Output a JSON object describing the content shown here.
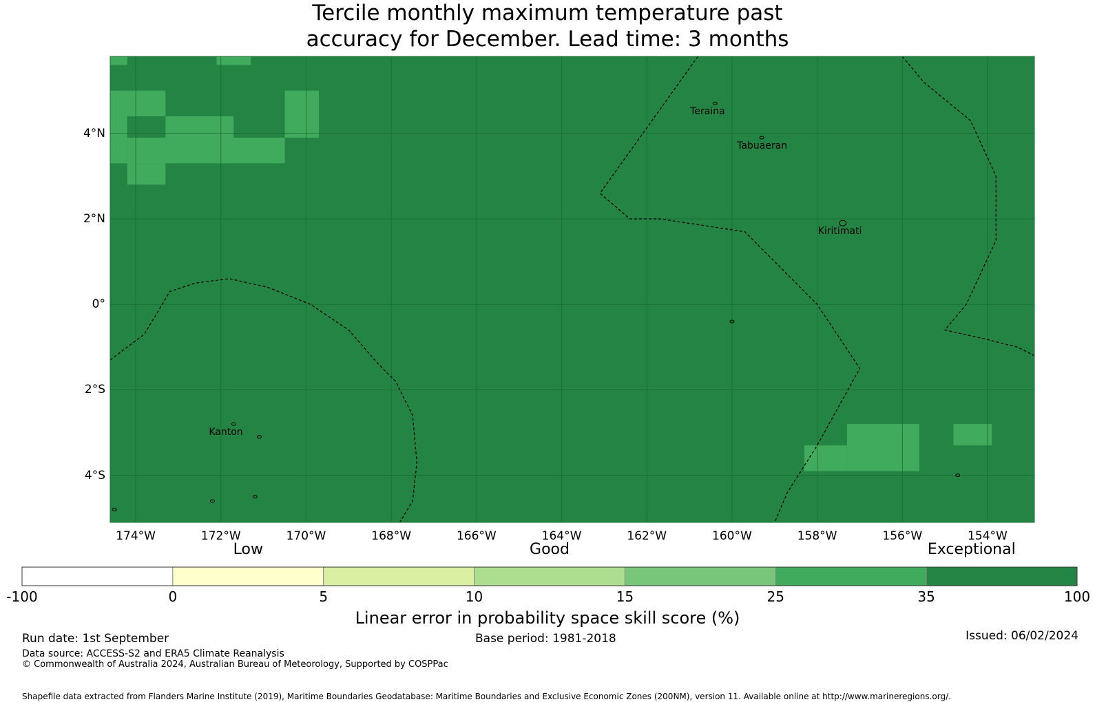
{
  "title": {
    "line1": "Tercile monthly maximum temperature past",
    "line2": "accuracy for December. Lead time: 3 months"
  },
  "map": {
    "lon_range": [
      -174.6,
      -152.9
    ],
    "lat_range": [
      -5.1,
      5.8
    ],
    "grid_step_deg": 2,
    "grid_visible": true,
    "background_color": "#238443",
    "cell_color": "#41ab5d",
    "lat_labels": [
      {
        "lat": 4,
        "text": "4°N"
      },
      {
        "lat": 2,
        "text": "2°N"
      },
      {
        "lat": 0,
        "text": "0°"
      },
      {
        "lat": -2,
        "text": "2°S"
      },
      {
        "lat": -4,
        "text": "4°S"
      }
    ],
    "lon_labels": [
      {
        "lon": -174,
        "text": "174°W"
      },
      {
        "lon": -172,
        "text": "172°W"
      },
      {
        "lon": -170,
        "text": "170°W"
      },
      {
        "lon": -168,
        "text": "168°W"
      },
      {
        "lon": -166,
        "text": "166°W"
      },
      {
        "lon": -164,
        "text": "164°W"
      },
      {
        "lon": -162,
        "text": "162°W"
      },
      {
        "lon": -160,
        "text": "160°W"
      },
      {
        "lon": -158,
        "text": "158°W"
      },
      {
        "lon": -156,
        "text": "156°W"
      },
      {
        "lon": -154,
        "text": "154°W"
      }
    ],
    "skill_cells_25_35": [
      {
        "lon0": -174.6,
        "lon1": -174.2,
        "lat0": 5.6,
        "lat1": 5.8
      },
      {
        "lon0": -172.1,
        "lon1": -171.3,
        "lat0": 5.6,
        "lat1": 5.8
      },
      {
        "lon0": -174.6,
        "lon1": -173.3,
        "lat0": 4.4,
        "lat1": 5.0
      },
      {
        "lon0": -170.5,
        "lon1": -169.7,
        "lat0": 3.9,
        "lat1": 5.0
      },
      {
        "lon0": -174.6,
        "lon1": -174.2,
        "lat0": 3.3,
        "lat1": 4.4
      },
      {
        "lon0": -173.3,
        "lon1": -171.7,
        "lat0": 3.9,
        "lat1": 4.4
      },
      {
        "lon0": -174.2,
        "lon1": -170.5,
        "lat0": 3.3,
        "lat1": 3.9
      },
      {
        "lon0": -174.2,
        "lon1": -173.3,
        "lat0": 2.8,
        "lat1": 3.3
      },
      {
        "lon0": -157.3,
        "lon1": -155.6,
        "lat0": -3.9,
        "lat1": -2.8
      },
      {
        "lon0": -158.3,
        "lon1": -157.3,
        "lat0": -3.9,
        "lat1": -3.3
      },
      {
        "lon0": -154.8,
        "lon1": -153.9,
        "lat0": -3.3,
        "lat1": -2.8
      }
    ],
    "eez_boundaries": [
      [
        [
          -174.6,
          -1.3
        ],
        [
          -173.8,
          -0.7
        ],
        [
          -173.2,
          0.3
        ],
        [
          -172.6,
          0.5
        ],
        [
          -171.8,
          0.6
        ],
        [
          -170.9,
          0.4
        ],
        [
          -169.9,
          0.0
        ],
        [
          -169.0,
          -0.6
        ],
        [
          -168.3,
          -1.4
        ],
        [
          -167.9,
          -1.8
        ],
        [
          -167.5,
          -2.6
        ],
        [
          -167.4,
          -3.7
        ],
        [
          -167.5,
          -4.6
        ],
        [
          -167.8,
          -5.1
        ]
      ],
      [
        [
          -160.8,
          5.8
        ],
        [
          -163.1,
          2.6
        ],
        [
          -162.4,
          2.0
        ],
        [
          -161.7,
          2.0
        ],
        [
          -159.7,
          1.7
        ],
        [
          -158.0,
          0.0
        ],
        [
          -157.0,
          -1.5
        ],
        [
          -158.0,
          -3.3
        ],
        [
          -158.7,
          -4.4
        ],
        [
          -159.0,
          -5.1
        ]
      ],
      [
        [
          -156.0,
          5.8
        ],
        [
          -155.5,
          5.2
        ],
        [
          -154.4,
          4.3
        ],
        [
          -153.8,
          3.0
        ],
        [
          -153.8,
          1.5
        ],
        [
          -154.5,
          0.0
        ],
        [
          -155.0,
          -0.6
        ],
        [
          -154.1,
          -0.8
        ],
        [
          -153.3,
          -1.0
        ],
        [
          -152.9,
          -1.2
        ]
      ]
    ],
    "islands": [
      {
        "name": "Teraina",
        "lon": -160.4,
        "lat": 4.7,
        "show_label": true,
        "label": "Teraina"
      },
      {
        "name": "Tabuaeran",
        "lon": -159.3,
        "lat": 3.9,
        "show_label": true,
        "label": "Tabuaeran"
      },
      {
        "name": "Kiritimati",
        "lon": -157.4,
        "lat": 1.9,
        "show_label": true,
        "label": "Kiritimati"
      },
      {
        "name": "Kanton",
        "lon": -171.7,
        "lat": -2.8,
        "show_label": true,
        "label": "Kanton"
      },
      {
        "name": "small-island",
        "lon": -171.1,
        "lat": -3.1,
        "show_label": false,
        "label": ""
      },
      {
        "name": "small-island",
        "lon": -160.0,
        "lat": -0.4,
        "show_label": false,
        "label": ""
      },
      {
        "name": "small-island",
        "lon": -154.7,
        "lat": -4.0,
        "show_label": false,
        "label": ""
      },
      {
        "name": "small-island",
        "lon": -172.2,
        "lat": -4.6,
        "show_label": false,
        "label": ""
      },
      {
        "name": "small-island",
        "lon": -171.2,
        "lat": -4.5,
        "show_label": false,
        "label": ""
      },
      {
        "name": "small-island",
        "lon": -174.5,
        "lat": -4.8,
        "show_label": false,
        "label": ""
      }
    ]
  },
  "colorbar": {
    "category_labels": [
      "Low",
      "Good",
      "Exceptional"
    ],
    "tick_labels": [
      "-100",
      "0",
      "5",
      "10",
      "15",
      "25",
      "35",
      "100"
    ],
    "colors": [
      "#ffffff",
      "#ffffcc",
      "#d9f0a3",
      "#addd8e",
      "#78c679",
      "#41ab5d",
      "#238443"
    ],
    "title": "Linear error in probability space skill score (%)"
  },
  "footer": {
    "run_date": "Run date: 1st September",
    "base_period": "Base period: 1981-2018",
    "issued": "Issued: 06/02/2024",
    "data_source": "Data source: ACCESS-S2 and ERA5 Climate Reanalysis",
    "copyright": "© Commonwealth of Australia 2024, Australian Bureau of Meteorology, Supported by COSPPac",
    "shapefile": "Shapefile data extracted from Flanders Marine Institute (2019), Maritime Boundaries Geodatabase: Maritime Boundaries and Exclusive Economic Zones (200NM), version 11. Available online at http://www.marineregions.org/."
  }
}
